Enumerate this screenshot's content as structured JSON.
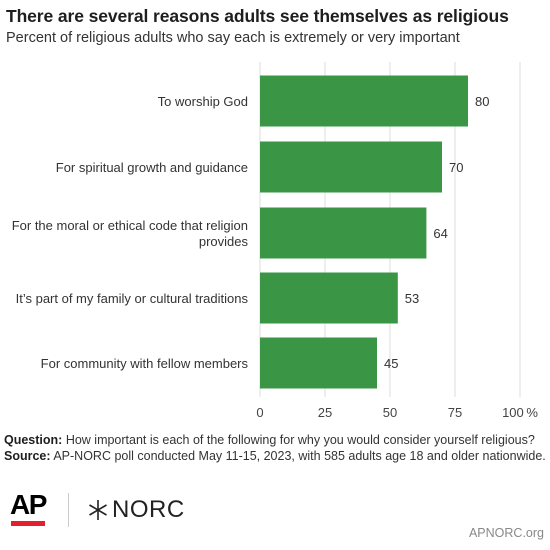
{
  "header": {
    "title": "There are several reasons adults see themselves as religious",
    "subtitle": "Percent of religious adults who say each is extremely or very important"
  },
  "chart_data": {
    "type": "bar",
    "orientation": "horizontal",
    "categories": [
      [
        "To worship God"
      ],
      [
        "For spiritual growth and guidance"
      ],
      [
        "For the moral or ethical code that religion",
        "provides"
      ],
      [
        "It’s part of my family or cultural traditions"
      ],
      [
        "For community with fellow members"
      ]
    ],
    "values": [
      80,
      70,
      64,
      53,
      45
    ],
    "xlim": [
      0,
      100
    ],
    "xticks": [
      0,
      25,
      50,
      75,
      100
    ],
    "xtick_labels": [
      "0",
      "25",
      "50",
      "75",
      "100 %"
    ],
    "bar_color": "#3a9545",
    "grid": "vertical",
    "grid_color": "#dddddd"
  },
  "notes": {
    "question_label": "Question:",
    "question_text": " How important is each of the following for why you would consider yourself religious?",
    "source_label": "Source:",
    "source_text": " AP-NORC poll conducted May 11-15, 2023, with 585 adults age 18 and older nationwide."
  },
  "logos": {
    "ap_text": "AP",
    "ap_accent_color": "#e5202e",
    "norc_text": "NORC"
  },
  "footer": {
    "url": "APNORC.org"
  }
}
